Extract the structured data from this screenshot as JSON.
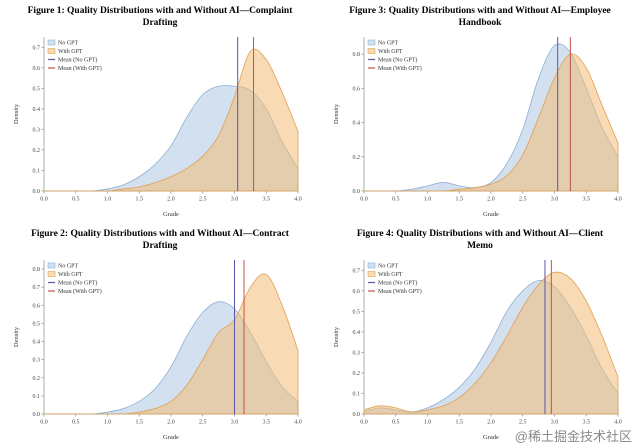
{
  "page": {
    "background": "#ffffff",
    "watermark": "@稀土掘金技术社区"
  },
  "palette": {
    "no_gpt_fill": "#aec7e2",
    "no_gpt_stroke": "#8fb0d3",
    "with_gpt_fill": "#f3bd77",
    "with_gpt_stroke": "#e0a050",
    "mean_no_gpt": "#5c55a6",
    "mean_with_gpt": "#c0504d",
    "axis_color": "#888888",
    "tick_text_color": "#444444"
  },
  "legend": {
    "no_gpt": "No GPT",
    "with_gpt": "With GPT",
    "mean_no_gpt": "Mean (No GPT)",
    "mean_with_gpt": "Mean (With GPT)"
  },
  "chart_data": [
    {
      "id": "figure-1",
      "type": "area",
      "title": "Figure 1: Quality Distributions with and Without AI—Complaint Drafting",
      "xlabel": "Grade",
      "ylabel": "Density",
      "xlim": [
        0,
        4
      ],
      "ylim": [
        0,
        0.75
      ],
      "xticks": [
        0,
        0.5,
        1,
        1.5,
        2,
        2.5,
        3,
        3.5,
        4
      ],
      "yticks": [
        0,
        0.1,
        0.2,
        0.3,
        0.4,
        0.5,
        0.6,
        0.7
      ],
      "series": [
        {
          "name": "No GPT",
          "x": [
            0,
            0.25,
            0.5,
            0.75,
            1,
            1.25,
            1.5,
            1.75,
            2,
            2.25,
            2.5,
            2.75,
            3,
            3.25,
            3.5,
            3.75,
            4
          ],
          "y": [
            0,
            0,
            0,
            0,
            0.01,
            0.03,
            0.07,
            0.13,
            0.22,
            0.36,
            0.47,
            0.51,
            0.51,
            0.49,
            0.4,
            0.24,
            0.11
          ]
        },
        {
          "name": "With GPT",
          "x": [
            0,
            0.25,
            0.5,
            0.75,
            1,
            1.25,
            1.5,
            1.75,
            2,
            2.25,
            2.5,
            2.75,
            3,
            3.25,
            3.5,
            3.75,
            4
          ],
          "y": [
            0,
            0,
            0,
            0,
            0,
            0.01,
            0.02,
            0.04,
            0.07,
            0.11,
            0.17,
            0.27,
            0.46,
            0.68,
            0.64,
            0.48,
            0.29
          ]
        }
      ],
      "means": {
        "no_gpt": 3.05,
        "with_gpt": 3.3
      }
    },
    {
      "id": "figure-3",
      "type": "area",
      "title": "Figure 3: Quality Distributions with and Without AI—Employee Handbook",
      "xlabel": "Grade",
      "ylabel": "Density",
      "xlim": [
        0,
        4
      ],
      "ylim": [
        0,
        0.9
      ],
      "xticks": [
        0,
        0.5,
        1,
        1.5,
        2,
        2.5,
        3,
        3.5,
        4
      ],
      "yticks": [
        0,
        0.2,
        0.4,
        0.6,
        0.8
      ],
      "series": [
        {
          "name": "No GPT",
          "x": [
            0,
            0.25,
            0.5,
            0.75,
            1,
            1.25,
            1.5,
            1.75,
            2,
            2.25,
            2.5,
            2.75,
            3,
            3.25,
            3.5,
            3.75,
            4
          ],
          "y": [
            0,
            0,
            0,
            0.01,
            0.03,
            0.05,
            0.03,
            0.02,
            0.05,
            0.16,
            0.36,
            0.66,
            0.85,
            0.81,
            0.6,
            0.37,
            0.2
          ]
        },
        {
          "name": "With GPT",
          "x": [
            0,
            0.25,
            0.5,
            0.75,
            1,
            1.25,
            1.5,
            1.75,
            2,
            2.25,
            2.5,
            2.75,
            3,
            3.25,
            3.5,
            3.75,
            4
          ],
          "y": [
            0,
            0,
            0,
            0,
            0,
            0,
            0.01,
            0.02,
            0.04,
            0.09,
            0.21,
            0.43,
            0.66,
            0.8,
            0.72,
            0.5,
            0.28
          ]
        }
      ],
      "means": {
        "no_gpt": 3.05,
        "with_gpt": 3.25
      }
    },
    {
      "id": "figure-2",
      "type": "area",
      "title": "Figure 2: Quality Distributions with and Without AI—Contract Drafting",
      "xlabel": "Grade",
      "ylabel": "Density",
      "xlim": [
        0,
        4
      ],
      "ylim": [
        0,
        0.85
      ],
      "xticks": [
        0,
        0.5,
        1,
        1.5,
        2,
        2.5,
        3,
        3.5,
        4
      ],
      "yticks": [
        0,
        0.1,
        0.2,
        0.3,
        0.4,
        0.5,
        0.6,
        0.7,
        0.8
      ],
      "series": [
        {
          "name": "No GPT",
          "x": [
            0,
            0.25,
            0.5,
            0.75,
            1,
            1.25,
            1.5,
            1.75,
            2,
            2.25,
            2.5,
            2.75,
            3,
            3.25,
            3.5,
            3.75,
            4
          ],
          "y": [
            0,
            0,
            0,
            0,
            0.01,
            0.03,
            0.07,
            0.14,
            0.26,
            0.43,
            0.56,
            0.62,
            0.58,
            0.45,
            0.29,
            0.15,
            0.07
          ]
        },
        {
          "name": "With GPT",
          "x": [
            0,
            0.25,
            0.5,
            0.75,
            1,
            1.25,
            1.5,
            1.75,
            2,
            2.25,
            2.5,
            2.75,
            3,
            3.25,
            3.5,
            3.75,
            4
          ],
          "y": [
            0,
            0,
            0,
            0,
            0,
            0,
            0.01,
            0.03,
            0.07,
            0.16,
            0.3,
            0.45,
            0.52,
            0.7,
            0.77,
            0.6,
            0.35
          ]
        }
      ],
      "means": {
        "no_gpt": 3.0,
        "with_gpt": 3.15
      }
    },
    {
      "id": "figure-4",
      "type": "area",
      "title": "Figure 4: Quality Distributions with and Without AI—Client Memo",
      "xlabel": "Grade",
      "ylabel": "Density",
      "xlim": [
        0,
        4
      ],
      "ylim": [
        0,
        0.75
      ],
      "xticks": [
        0,
        0.5,
        1,
        1.5,
        2,
        2.5,
        3,
        3.5,
        4
      ],
      "yticks": [
        0,
        0.1,
        0.2,
        0.3,
        0.4,
        0.5,
        0.6,
        0.7
      ],
      "series": [
        {
          "name": "No GPT",
          "x": [
            0,
            0.25,
            0.5,
            0.75,
            1,
            1.25,
            1.5,
            1.75,
            2,
            2.25,
            2.5,
            2.75,
            3,
            3.25,
            3.5,
            3.75,
            4
          ],
          "y": [
            0.01,
            0.03,
            0.02,
            0.01,
            0.03,
            0.07,
            0.13,
            0.22,
            0.35,
            0.5,
            0.6,
            0.65,
            0.62,
            0.52,
            0.38,
            0.22,
            0.1
          ]
        },
        {
          "name": "With GPT",
          "x": [
            0,
            0.25,
            0.5,
            0.75,
            1,
            1.25,
            1.5,
            1.75,
            2,
            2.25,
            2.5,
            2.75,
            3,
            3.25,
            3.5,
            3.75,
            4
          ],
          "y": [
            0.02,
            0.04,
            0.03,
            0.01,
            0.02,
            0.04,
            0.08,
            0.15,
            0.25,
            0.38,
            0.52,
            0.63,
            0.69,
            0.66,
            0.55,
            0.38,
            0.18
          ]
        }
      ],
      "means": {
        "no_gpt": 2.85,
        "with_gpt": 2.95
      }
    }
  ]
}
